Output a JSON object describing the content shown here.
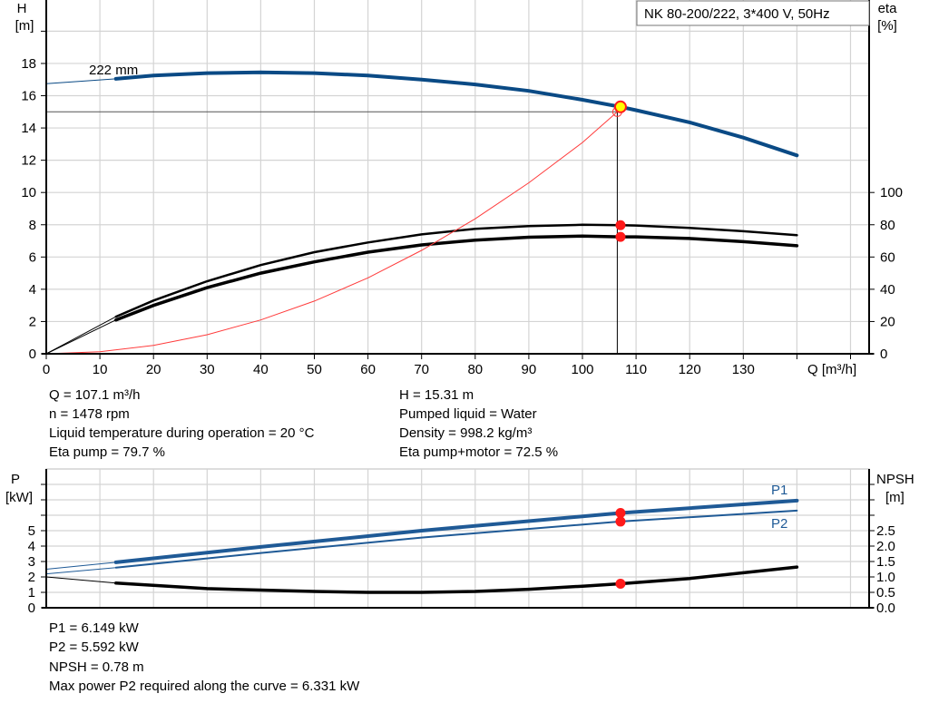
{
  "title": "NK 80-200/222, 3*400 V, 50Hz",
  "colors": {
    "head": "#0a4a85",
    "power": "#1f5a96",
    "eta": "#000000",
    "system": "#ff3b3b",
    "point": "#ff1a1a",
    "op_fill": "#ffff00"
  },
  "chart_data": [
    {
      "type": "line",
      "xlabel": "Q [m³/h]",
      "ylabel": "H",
      "ylabel_unit": "[m]",
      "y2label": "eta",
      "y2label_unit": "[%]",
      "xlim": [
        0,
        150
      ],
      "ylim": [
        0,
        22
      ],
      "y2lim": [
        0,
        100
      ],
      "x_ticks": [
        0,
        10,
        20,
        30,
        40,
        50,
        60,
        70,
        80,
        90,
        100,
        110,
        120,
        130
      ],
      "y_ticks": [
        0,
        2,
        4,
        6,
        8,
        10,
        12,
        14,
        16,
        18
      ],
      "y2_ticks": [
        0,
        20,
        40,
        60,
        80,
        100
      ],
      "grid": true,
      "curve_label": "222 mm",
      "series": [
        {
          "key": "head",
          "axis": "H",
          "x": [
            0,
            13
          ],
          "y": [
            16.75,
            17.05
          ],
          "style": "thin-extension"
        },
        {
          "key": "head",
          "axis": "H",
          "x": [
            13,
            20,
            30,
            40,
            50,
            60,
            70,
            80,
            90,
            100,
            107.1,
            110,
            120,
            130,
            140
          ],
          "y": [
            17.05,
            17.25,
            17.4,
            17.45,
            17.4,
            17.25,
            17.0,
            16.7,
            16.3,
            15.75,
            15.31,
            15.1,
            14.35,
            13.4,
            12.3
          ]
        },
        {
          "key": "eta_pump",
          "axis": "eta",
          "x": [
            0,
            13
          ],
          "y": [
            0,
            23
          ],
          "style": "thin-extension"
        },
        {
          "key": "eta_pump",
          "axis": "eta",
          "x": [
            13,
            20,
            30,
            40,
            50,
            60,
            70,
            80,
            90,
            100,
            107.1,
            110,
            120,
            130,
            140
          ],
          "y": [
            23,
            33,
            45,
            55,
            63,
            69,
            74,
            77.5,
            79.2,
            80,
            79.7,
            79.5,
            78,
            76,
            73.5
          ]
        },
        {
          "key": "eta_pump_motor",
          "axis": "eta",
          "x": [
            0,
            13
          ],
          "y": [
            0,
            21
          ],
          "style": "thin-extension"
        },
        {
          "key": "eta_pump_motor",
          "axis": "eta",
          "x": [
            13,
            20,
            30,
            40,
            50,
            60,
            70,
            80,
            90,
            100,
            107.1,
            110,
            120,
            130,
            140
          ],
          "y": [
            21,
            30,
            41,
            50,
            57,
            63,
            67.5,
            70.5,
            72.3,
            73,
            72.5,
            72.5,
            71.5,
            69.5,
            67
          ]
        },
        {
          "key": "system",
          "axis": "H",
          "x": [
            0,
            10,
            20,
            30,
            40,
            50,
            60,
            70,
            80,
            90,
            100,
            106.5
          ],
          "y": [
            0,
            0.13,
            0.52,
            1.18,
            2.1,
            3.27,
            4.71,
            6.41,
            8.37,
            10.6,
            13.1,
            15.0
          ]
        }
      ],
      "duty_point": {
        "Q": 106.5,
        "H": 15.0
      },
      "operating_point": {
        "Q": 107.1,
        "H": 15.31,
        "eta_pump": 79.7,
        "eta_pump_motor": 72.5
      }
    },
    {
      "type": "line",
      "ylabel": "P",
      "ylabel_unit": "[kW]",
      "y2label": "NPSH",
      "y2label_unit": "[m]",
      "xlim": [
        0,
        150
      ],
      "ylim": [
        0,
        9
      ],
      "y2lim": [
        0,
        4.5
      ],
      "y_ticks": [
        0,
        1,
        2,
        3,
        4,
        5
      ],
      "y_minor_ticks": [
        6,
        7,
        8
      ],
      "y2_ticks": [
        "0.0",
        "0.5",
        "1.0",
        "1.5",
        "2.0",
        "2.5"
      ],
      "grid": true,
      "series": [
        {
          "name": "P1",
          "axis": "P",
          "x": [
            0,
            13
          ],
          "y": [
            2.5,
            2.95
          ],
          "style": "thin-extension"
        },
        {
          "name": "P1",
          "axis": "P",
          "x": [
            13,
            40,
            70,
            107.1,
            140
          ],
          "y": [
            2.95,
            3.95,
            5.0,
            6.149,
            6.95
          ]
        },
        {
          "name": "P2",
          "axis": "P",
          "x": [
            0,
            13
          ],
          "y": [
            2.2,
            2.6
          ],
          "style": "thin-extension"
        },
        {
          "name": "P2",
          "axis": "P",
          "x": [
            13,
            40,
            70,
            107.1,
            140
          ],
          "y": [
            2.6,
            3.55,
            4.55,
            5.592,
            6.3
          ]
        },
        {
          "key": "npsh",
          "axis": "NPSH",
          "x": [
            0,
            13
          ],
          "y": [
            1.0,
            0.8
          ],
          "style": "thin-extension"
        },
        {
          "key": "npsh",
          "axis": "NPSH",
          "x": [
            13,
            30,
            50,
            60,
            70,
            80,
            90,
            100,
            107.1,
            120,
            140
          ],
          "y": [
            0.8,
            0.62,
            0.53,
            0.5,
            0.5,
            0.53,
            0.6,
            0.7,
            0.78,
            0.95,
            1.32
          ]
        }
      ],
      "operating_point": {
        "Q": 107.1,
        "P1": 6.149,
        "P2": 5.592,
        "NPSH": 0.78
      }
    }
  ],
  "info_top": {
    "left": [
      "Q = 107.1 m³/h",
      "n = 1478 rpm",
      "Liquid temperature during operation = 20 °C",
      "Eta pump = 79.7 %"
    ],
    "right": [
      "H = 15.31 m",
      "Pumped liquid = Water",
      "Density = 998.2 kg/m³",
      "Eta pump+motor = 72.5 %"
    ]
  },
  "info_bottom": [
    "P1 = 6.149 kW",
    "P2 = 5.592 kW",
    "NPSH = 0.78 m",
    "Max power P2 required along the curve = 6.331 kW"
  ]
}
